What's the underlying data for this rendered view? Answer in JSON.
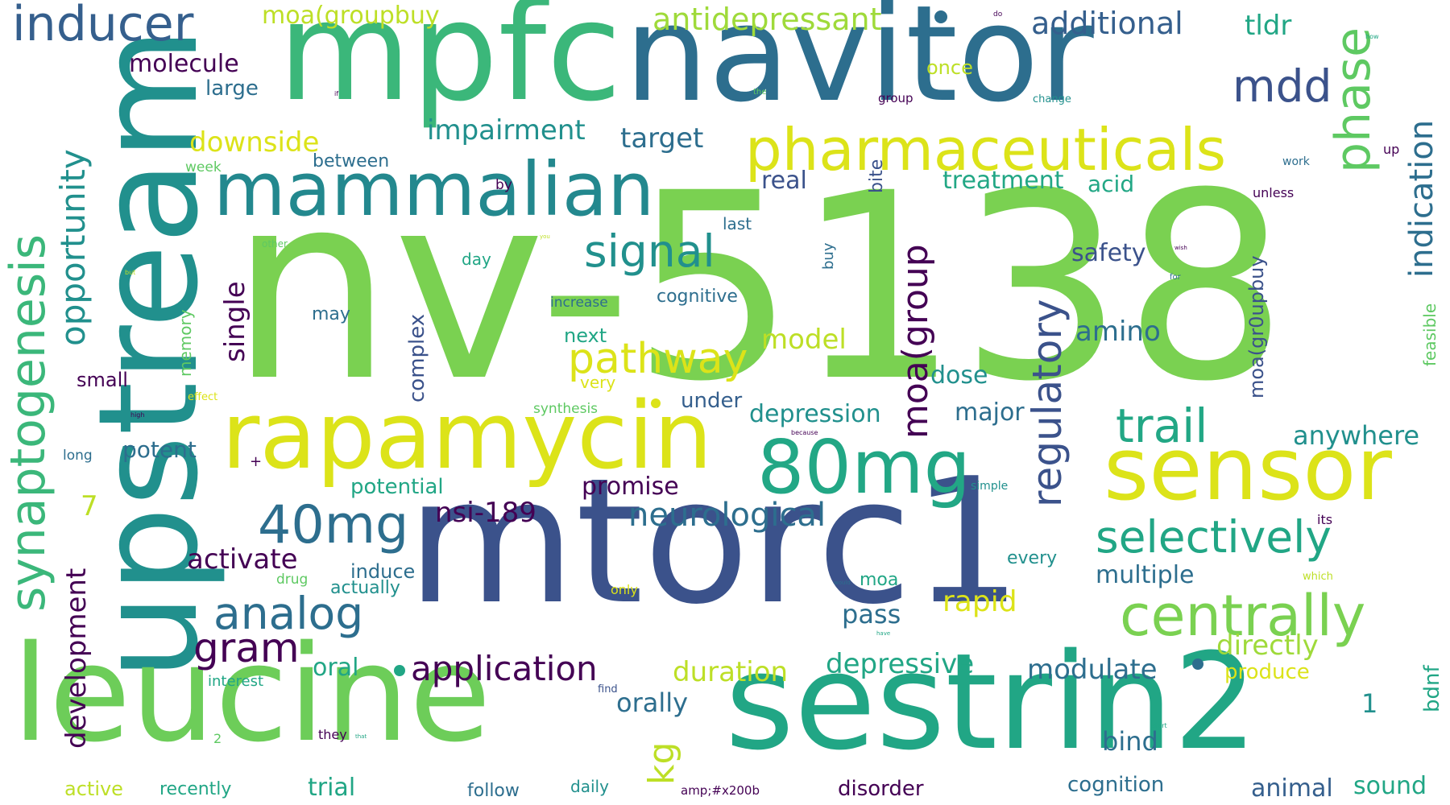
{
  "colors": {
    "purple": "#440154",
    "indigo": "#3b528b",
    "steel": "#2d6e8e",
    "teal": "#21908d",
    "jade": "#27ad81",
    "green": "#5ec962",
    "lime": "#7ad151",
    "yellow": "#d8e219",
    "yellow2": "#bddf26"
  },
  "words": [
    {
      "id": 0,
      "text": "nv-5138"
    },
    {
      "id": 1,
      "text": "mtorc1"
    },
    {
      "id": 2,
      "text": "upstream"
    },
    {
      "id": 3,
      "text": "mpfc"
    },
    {
      "id": 4,
      "text": "navitor"
    },
    {
      "id": 5,
      "text": "sestrin2"
    },
    {
      "id": 6,
      "text": "leucine"
    },
    {
      "id": 7,
      "text": "rapamycin"
    },
    {
      "id": 8,
      "text": "mammalian"
    },
    {
      "id": 9,
      "text": "sensor"
    },
    {
      "id": 10,
      "text": "pharmaceuticals"
    },
    {
      "id": 11,
      "text": "80mg"
    },
    {
      "id": 12,
      "text": "synaptogenesis"
    },
    {
      "id": 13,
      "text": "centrally"
    },
    {
      "id": 14,
      "text": "40mg"
    },
    {
      "id": 15,
      "text": "inducer"
    },
    {
      "id": 16,
      "text": "signal"
    },
    {
      "id": 17,
      "text": "selectively"
    },
    {
      "id": 18,
      "text": "analog"
    },
    {
      "id": 19,
      "text": "pathway"
    },
    {
      "id": 20,
      "text": "regulatory"
    },
    {
      "id": 21,
      "text": "phase"
    },
    {
      "id": 22,
      "text": "mdd"
    },
    {
      "id": 23,
      "text": "trail"
    },
    {
      "id": 24,
      "text": "moa(group"
    },
    {
      "id": 25,
      "text": "indication"
    },
    {
      "id": 26,
      "text": "opportunity"
    },
    {
      "id": 27,
      "text": "gram"
    },
    {
      "id": 28,
      "text": "application"
    },
    {
      "id": 29,
      "text": "kg"
    },
    {
      "id": 30,
      "text": "neurological"
    },
    {
      "id": 31,
      "text": "antidepressant"
    },
    {
      "id": 32,
      "text": "additional"
    },
    {
      "id": 33,
      "text": "moa(groupbuy"
    },
    {
      "id": 34,
      "text": "tldr"
    },
    {
      "id": 35,
      "text": "molecule"
    },
    {
      "id": 36,
      "text": "large"
    },
    {
      "id": 37,
      "text": "once"
    },
    {
      "id": 38,
      "text": "impairment"
    },
    {
      "id": 39,
      "text": "downside"
    },
    {
      "id": 40,
      "text": "target"
    },
    {
      "id": 41,
      "text": "between"
    },
    {
      "id": 42,
      "text": "week"
    },
    {
      "id": 43,
      "text": "real"
    },
    {
      "id": 44,
      "text": "treatment"
    },
    {
      "id": 45,
      "text": "acid"
    },
    {
      "id": 46,
      "text": "by"
    },
    {
      "id": 47,
      "text": "bite"
    },
    {
      "id": 48,
      "text": "last"
    },
    {
      "id": 49,
      "text": "safety"
    },
    {
      "id": 50,
      "text": "moa(gr0upbuy"
    },
    {
      "id": 51,
      "text": "amino"
    },
    {
      "id": 52,
      "text": "single"
    },
    {
      "id": 53,
      "text": "model"
    },
    {
      "id": 54,
      "text": "cognitive"
    },
    {
      "id": 55,
      "text": "may"
    },
    {
      "id": 56,
      "text": "increase"
    },
    {
      "id": 57,
      "text": "complex"
    },
    {
      "id": 58,
      "text": "memory"
    },
    {
      "id": 59,
      "text": "next"
    },
    {
      "id": 60,
      "text": "very"
    },
    {
      "id": 61,
      "text": "dose"
    },
    {
      "id": 62,
      "text": "small"
    },
    {
      "id": 63,
      "text": "under"
    },
    {
      "id": 64,
      "text": "depression"
    },
    {
      "id": 65,
      "text": "major"
    },
    {
      "id": 66,
      "text": "anywhere"
    },
    {
      "id": 67,
      "text": "synthesis"
    },
    {
      "id": 68,
      "text": "effect"
    },
    {
      "id": 69,
      "text": "potent"
    },
    {
      "id": 70,
      "text": "long"
    },
    {
      "id": 71,
      "text": "promise"
    },
    {
      "id": 72,
      "text": "potential"
    },
    {
      "id": 73,
      "text": "nsi-189"
    },
    {
      "id": 74,
      "text": "7"
    },
    {
      "id": 75,
      "text": "development"
    },
    {
      "id": 76,
      "text": "activate"
    },
    {
      "id": 77,
      "text": "induce"
    },
    {
      "id": 78,
      "text": "drug"
    },
    {
      "id": 79,
      "text": "actually"
    },
    {
      "id": 80,
      "text": "every"
    },
    {
      "id": 81,
      "text": "multiple"
    },
    {
      "id": 82,
      "text": "moa"
    },
    {
      "id": 83,
      "text": "only"
    },
    {
      "id": 84,
      "text": "pass"
    },
    {
      "id": 85,
      "text": "rapid"
    },
    {
      "id": 86,
      "text": "directly"
    },
    {
      "id": 87,
      "text": "oral"
    },
    {
      "id": 88,
      "text": "duration"
    },
    {
      "id": 89,
      "text": "depressive"
    },
    {
      "id": 90,
      "text": "modulate"
    },
    {
      "id": 91,
      "text": "produce"
    },
    {
      "id": 92,
      "text": "interest"
    },
    {
      "id": 93,
      "text": "orally"
    },
    {
      "id": 94,
      "text": "find"
    },
    {
      "id": 95,
      "text": "bind"
    },
    {
      "id": 96,
      "text": "bdnf"
    },
    {
      "id": 97,
      "text": "they"
    },
    {
      "id": 98,
      "text": "2"
    },
    {
      "id": 99,
      "text": "1"
    },
    {
      "id": 100,
      "text": "active"
    },
    {
      "id": 101,
      "text": "recently"
    },
    {
      "id": 102,
      "text": "trial"
    },
    {
      "id": 103,
      "text": "follow"
    },
    {
      "id": 104,
      "text": "daily"
    },
    {
      "id": 105,
      "text": "amp;#x200b"
    },
    {
      "id": 106,
      "text": "disorder"
    },
    {
      "id": 107,
      "text": "cognition"
    },
    {
      "id": 108,
      "text": "animal"
    },
    {
      "id": 109,
      "text": "sound"
    },
    {
      "id": 110,
      "text": "feasible"
    },
    {
      "id": 111,
      "text": "unless"
    },
    {
      "id": 112,
      "text": "work"
    },
    {
      "id": 113,
      "text": "up"
    },
    {
      "id": 114,
      "text": "group"
    },
    {
      "id": 115,
      "text": "change"
    },
    {
      "id": 116,
      "text": "the"
    },
    {
      "id": 117,
      "text": "buy"
    },
    {
      "id": 118,
      "text": "for"
    },
    {
      "id": 119,
      "text": "other"
    },
    {
      "id": 120,
      "text": "day"
    },
    {
      "id": 121,
      "text": "simple"
    },
    {
      "id": 122,
      "text": "its"
    },
    {
      "id": 123,
      "text": "which"
    },
    {
      "id": 124,
      "text": "do"
    },
    {
      "id": 125,
      "text": "how"
    },
    {
      "id": 126,
      "text": "if"
    },
    {
      "id": 127,
      "text": "because"
    },
    {
      "id": 128,
      "text": "high"
    },
    {
      "id": 129,
      "text": "but"
    },
    {
      "id": 130,
      "text": "you"
    },
    {
      "id": 131,
      "text": "would"
    },
    {
      "id": 132,
      "text": "have"
    },
    {
      "id": 133,
      "text": "start"
    },
    {
      "id": 134,
      "text": "that"
    },
    {
      "id": 135,
      "text": "wish"
    },
    {
      "id": 136,
      "text": "+"
    }
  ]
}
